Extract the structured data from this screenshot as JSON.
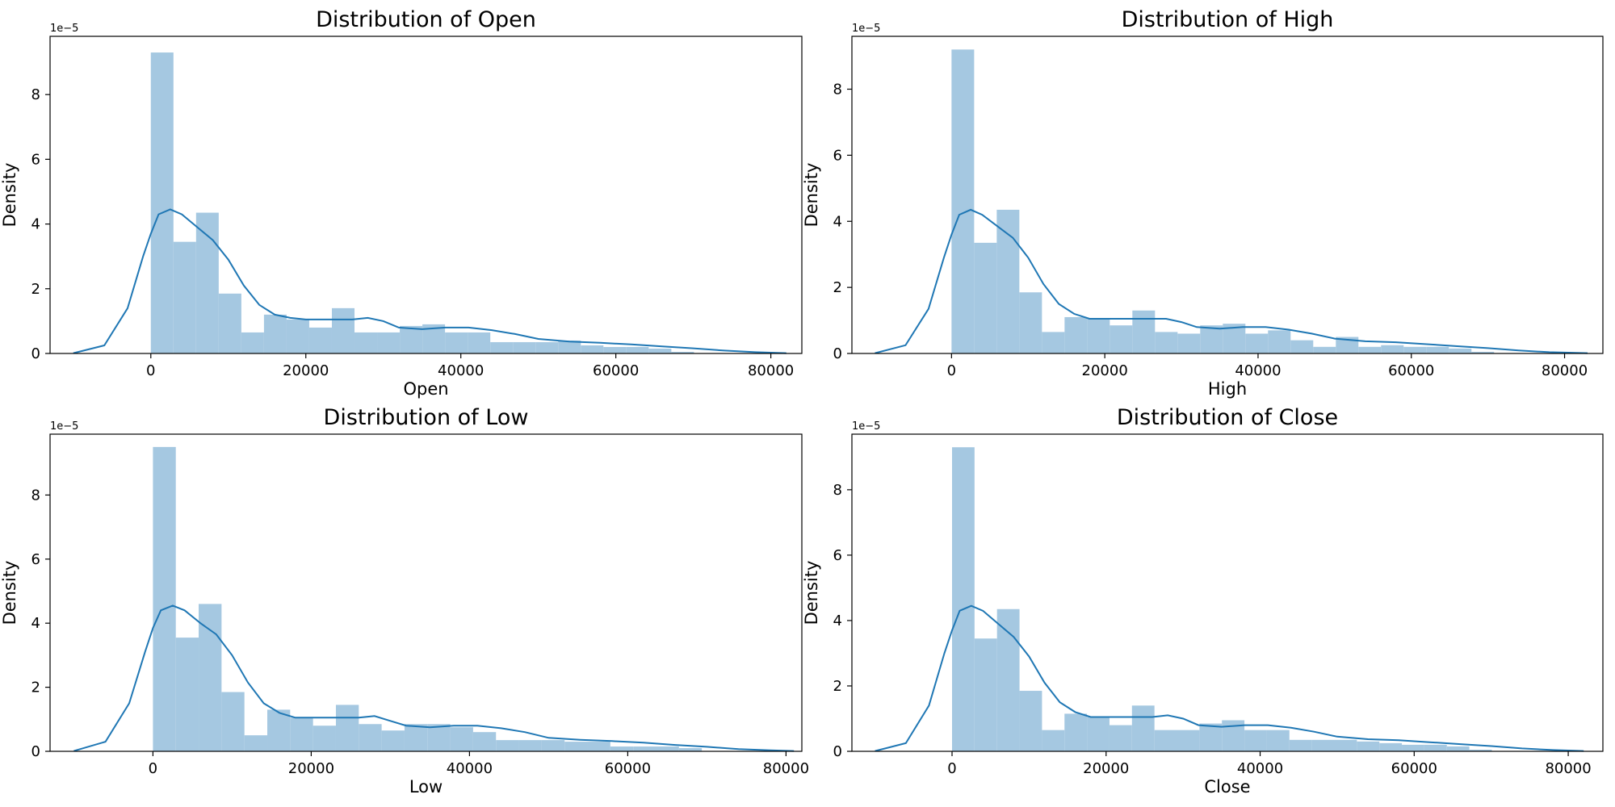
{
  "chart_data": [
    {
      "type": "bar",
      "title": "Distribution of Open",
      "xlabel": "Open",
      "ylabel": "Density",
      "y_offset_label": "1e−5",
      "xlim": [
        -13000,
        84000
      ],
      "ylim": [
        0,
        9.8
      ],
      "xticks": [
        0,
        20000,
        40000,
        60000,
        80000
      ],
      "yticks": [
        0,
        2,
        4,
        6,
        8
      ],
      "grid": false,
      "bin_start": 0,
      "bin_width": 2920,
      "bar_color": "#a5c8e1",
      "line_color": "#1f77b4",
      "hist": [
        9.3,
        3.45,
        4.35,
        1.85,
        0.65,
        1.2,
        1.05,
        0.8,
        1.4,
        0.65,
        0.65,
        0.85,
        0.9,
        0.65,
        0.65,
        0.35,
        0.35,
        0.35,
        0.4,
        0.25,
        0.2,
        0.2,
        0.15,
        0.05
      ],
      "kde": [
        [
          -10000,
          0.01
        ],
        [
          -6000,
          0.25
        ],
        [
          -3000,
          1.4
        ],
        [
          -1000,
          3.0
        ],
        [
          0,
          3.7
        ],
        [
          1000,
          4.3
        ],
        [
          2500,
          4.45
        ],
        [
          4000,
          4.3
        ],
        [
          6000,
          3.9
        ],
        [
          8000,
          3.5
        ],
        [
          10000,
          2.9
        ],
        [
          12000,
          2.1
        ],
        [
          14000,
          1.5
        ],
        [
          16000,
          1.2
        ],
        [
          18000,
          1.1
        ],
        [
          20000,
          1.05
        ],
        [
          23000,
          1.05
        ],
        [
          26000,
          1.05
        ],
        [
          28000,
          1.1
        ],
        [
          30000,
          1.0
        ],
        [
          32000,
          0.8
        ],
        [
          35000,
          0.75
        ],
        [
          38000,
          0.8
        ],
        [
          41000,
          0.8
        ],
        [
          44000,
          0.72
        ],
        [
          47000,
          0.6
        ],
        [
          50000,
          0.45
        ],
        [
          54000,
          0.37
        ],
        [
          58000,
          0.33
        ],
        [
          62000,
          0.28
        ],
        [
          66000,
          0.22
        ],
        [
          70000,
          0.16
        ],
        [
          74000,
          0.09
        ],
        [
          78000,
          0.04
        ],
        [
          82000,
          0.01
        ]
      ]
    },
    {
      "type": "bar",
      "title": "Distribution of High",
      "xlabel": "High",
      "ylabel": "Density",
      "y_offset_label": "1e−5",
      "xlim": [
        -13000,
        85000
      ],
      "ylim": [
        0,
        9.6
      ],
      "xticks": [
        0,
        20000,
        40000,
        60000,
        80000
      ],
      "yticks": [
        0,
        2,
        4,
        6,
        8
      ],
      "grid": false,
      "bin_start": 0,
      "bin_width": 2950,
      "bar_color": "#a5c8e1",
      "line_color": "#1f77b4",
      "hist": [
        9.2,
        3.35,
        4.35,
        1.85,
        0.65,
        1.1,
        1.05,
        0.85,
        1.3,
        0.65,
        0.6,
        0.85,
        0.9,
        0.6,
        0.7,
        0.4,
        0.2,
        0.5,
        0.2,
        0.25,
        0.2,
        0.2,
        0.15,
        0.05
      ],
      "kde": [
        [
          -10000,
          0.01
        ],
        [
          -6000,
          0.25
        ],
        [
          -3000,
          1.35
        ],
        [
          -1000,
          2.9
        ],
        [
          0,
          3.6
        ],
        [
          1000,
          4.2
        ],
        [
          2500,
          4.35
        ],
        [
          4000,
          4.2
        ],
        [
          6000,
          3.85
        ],
        [
          8000,
          3.5
        ],
        [
          10000,
          2.9
        ],
        [
          12000,
          2.1
        ],
        [
          14000,
          1.5
        ],
        [
          16000,
          1.2
        ],
        [
          18000,
          1.05
        ],
        [
          20000,
          1.05
        ],
        [
          23000,
          1.05
        ],
        [
          26000,
          1.05
        ],
        [
          28000,
          1.05
        ],
        [
          30000,
          0.95
        ],
        [
          32000,
          0.8
        ],
        [
          35000,
          0.75
        ],
        [
          38000,
          0.8
        ],
        [
          41000,
          0.8
        ],
        [
          44000,
          0.72
        ],
        [
          47000,
          0.6
        ],
        [
          50000,
          0.45
        ],
        [
          54000,
          0.37
        ],
        [
          58000,
          0.34
        ],
        [
          62000,
          0.28
        ],
        [
          66000,
          0.22
        ],
        [
          70000,
          0.16
        ],
        [
          74000,
          0.09
        ],
        [
          78000,
          0.04
        ],
        [
          83000,
          0.01
        ]
      ]
    },
    {
      "type": "bar",
      "title": "Distribution of Low",
      "xlabel": "Low",
      "ylabel": "Density",
      "y_offset_label": "1e−5",
      "xlim": [
        -13000,
        82000
      ],
      "ylim": [
        0,
        9.9
      ],
      "xticks": [
        0,
        20000,
        40000,
        60000,
        80000
      ],
      "yticks": [
        0,
        2,
        4,
        6,
        8
      ],
      "grid": false,
      "bin_start": 0,
      "bin_width": 2890,
      "bar_color": "#a5c8e1",
      "line_color": "#1f77b4",
      "hist": [
        9.5,
        3.55,
        4.6,
        1.85,
        0.5,
        1.3,
        1.05,
        0.8,
        1.45,
        0.85,
        0.65,
        0.85,
        0.85,
        0.75,
        0.6,
        0.35,
        0.35,
        0.35,
        0.3,
        0.3,
        0.15,
        0.15,
        0.15,
        0.1
      ],
      "kde": [
        [
          -10000,
          0.01
        ],
        [
          -6000,
          0.3
        ],
        [
          -3000,
          1.5
        ],
        [
          -1000,
          3.1
        ],
        [
          0,
          3.85
        ],
        [
          1000,
          4.4
        ],
        [
          2500,
          4.55
        ],
        [
          4000,
          4.4
        ],
        [
          6000,
          4.0
        ],
        [
          8000,
          3.65
        ],
        [
          10000,
          3.0
        ],
        [
          12000,
          2.15
        ],
        [
          14000,
          1.5
        ],
        [
          16000,
          1.2
        ],
        [
          18000,
          1.05
        ],
        [
          20000,
          1.05
        ],
        [
          23000,
          1.05
        ],
        [
          26000,
          1.05
        ],
        [
          28000,
          1.1
        ],
        [
          30000,
          0.95
        ],
        [
          32000,
          0.8
        ],
        [
          35000,
          0.75
        ],
        [
          38000,
          0.8
        ],
        [
          41000,
          0.8
        ],
        [
          44000,
          0.72
        ],
        [
          47000,
          0.6
        ],
        [
          50000,
          0.42
        ],
        [
          54000,
          0.36
        ],
        [
          58000,
          0.32
        ],
        [
          62000,
          0.27
        ],
        [
          66000,
          0.2
        ],
        [
          70000,
          0.14
        ],
        [
          74000,
          0.07
        ],
        [
          78000,
          0.03
        ],
        [
          81000,
          0.01
        ]
      ]
    },
    {
      "type": "bar",
      "title": "Distribution of Close",
      "xlabel": "Close",
      "ylabel": "Density",
      "y_offset_label": "1e−5",
      "xlim": [
        -13000,
        84500
      ],
      "ylim": [
        0,
        9.7
      ],
      "xticks": [
        0,
        20000,
        40000,
        60000,
        80000
      ],
      "yticks": [
        0,
        2,
        4,
        6,
        8
      ],
      "grid": false,
      "bin_start": 0,
      "bin_width": 2920,
      "bar_color": "#a5c8e1",
      "line_color": "#1f77b4",
      "hist": [
        9.3,
        3.45,
        4.35,
        1.85,
        0.65,
        1.15,
        1.05,
        0.8,
        1.4,
        0.65,
        0.65,
        0.85,
        0.95,
        0.65,
        0.65,
        0.35,
        0.35,
        0.35,
        0.3,
        0.25,
        0.2,
        0.2,
        0.15,
        0.05
      ],
      "kde": [
        [
          -10000,
          0.01
        ],
        [
          -6000,
          0.25
        ],
        [
          -3000,
          1.4
        ],
        [
          -1000,
          3.0
        ],
        [
          0,
          3.7
        ],
        [
          1000,
          4.3
        ],
        [
          2500,
          4.45
        ],
        [
          4000,
          4.3
        ],
        [
          6000,
          3.9
        ],
        [
          8000,
          3.5
        ],
        [
          10000,
          2.9
        ],
        [
          12000,
          2.1
        ],
        [
          14000,
          1.5
        ],
        [
          16000,
          1.2
        ],
        [
          18000,
          1.05
        ],
        [
          20000,
          1.05
        ],
        [
          23000,
          1.05
        ],
        [
          26000,
          1.05
        ],
        [
          28000,
          1.1
        ],
        [
          30000,
          1.0
        ],
        [
          32000,
          0.8
        ],
        [
          35000,
          0.75
        ],
        [
          38000,
          0.8
        ],
        [
          41000,
          0.8
        ],
        [
          44000,
          0.72
        ],
        [
          47000,
          0.6
        ],
        [
          50000,
          0.45
        ],
        [
          54000,
          0.37
        ],
        [
          58000,
          0.34
        ],
        [
          62000,
          0.28
        ],
        [
          66000,
          0.22
        ],
        [
          70000,
          0.16
        ],
        [
          74000,
          0.09
        ],
        [
          78000,
          0.04
        ],
        [
          82000,
          0.01
        ]
      ]
    }
  ]
}
